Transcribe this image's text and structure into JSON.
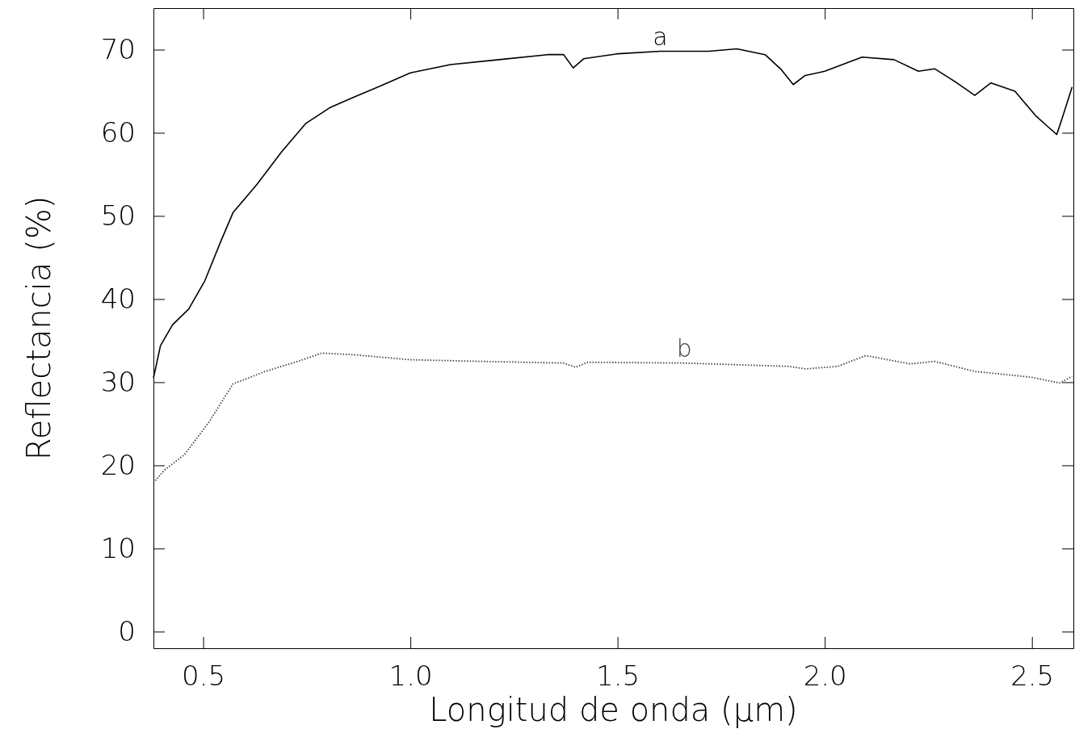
{
  "chart_data": {
    "type": "line",
    "xlabel": "Longitud de onda (μm)",
    "ylabel": "Reflectancia (%)",
    "xlim": [
      0.38,
      2.6
    ],
    "xticks": [
      {
        "value": 0.5,
        "label": "0.5"
      },
      {
        "value": 1,
        "label": "1.0"
      },
      {
        "value": 1.5,
        "label": "1.5"
      },
      {
        "value": 2,
        "label": "2.0"
      },
      {
        "value": 2.5,
        "label": "2.5"
      }
    ],
    "ylim": [
      -2,
      75
    ],
    "yticks": [
      0,
      10,
      20,
      30,
      40,
      50,
      60,
      70
    ],
    "grid": false,
    "marker": "none",
    "series": [
      {
        "name": "a",
        "color": "#000000",
        "line_style": "solid",
        "x": [
          0.38,
          0.397,
          0.426,
          0.465,
          0.504,
          0.543,
          0.572,
          0.63,
          0.689,
          0.747,
          0.805,
          0.864,
          0.922,
          1.0,
          1.097,
          1.214,
          1.331,
          1.37,
          1.393,
          1.418,
          1.5,
          1.603,
          1.72,
          1.788,
          1.856,
          1.895,
          1.924,
          1.953,
          2.0,
          2.09,
          2.167,
          2.226,
          2.265,
          2.313,
          2.362,
          2.401,
          2.459,
          2.508,
          2.537,
          2.56,
          2.572,
          2.597
        ],
        "values": [
          30.5,
          34.4,
          36.9,
          38.8,
          42.2,
          47.0,
          50.4,
          53.8,
          57.7,
          61.1,
          63.0,
          64.3,
          65.5,
          67.2,
          68.2,
          68.8,
          69.4,
          69.4,
          67.8,
          68.9,
          69.5,
          69.8,
          69.8,
          70.1,
          69.4,
          67.6,
          65.8,
          66.9,
          67.4,
          69.1,
          68.8,
          67.4,
          67.7,
          66.2,
          64.5,
          66.0,
          65.0,
          62.1,
          60.8,
          59.8,
          61.6,
          65.5
        ]
      },
      {
        "name": "b",
        "color": "#444444",
        "line_style": "dotted",
        "x": [
          0.38,
          0.406,
          0.455,
          0.514,
          0.572,
          0.65,
          0.728,
          0.786,
          0.864,
          1.0,
          1.175,
          1.37,
          1.399,
          1.428,
          1.661,
          1.914,
          1.953,
          2.031,
          2.099,
          2.206,
          2.265,
          2.362,
          2.498,
          2.567,
          2.597
        ],
        "values": [
          17.9,
          19.4,
          21.3,
          25.2,
          29.8,
          31.3,
          32.5,
          33.5,
          33.3,
          32.7,
          32.5,
          32.3,
          31.8,
          32.4,
          32.3,
          31.9,
          31.6,
          31.9,
          33.2,
          32.2,
          32.5,
          31.3,
          30.6,
          29.9,
          30.7
        ]
      }
    ]
  }
}
